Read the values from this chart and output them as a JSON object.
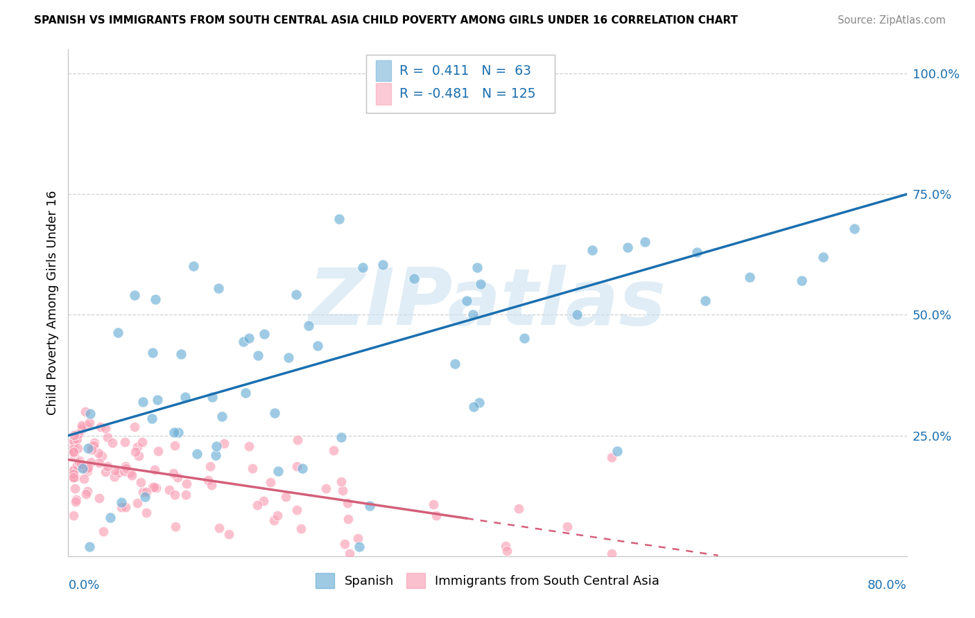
{
  "title": "SPANISH VS IMMIGRANTS FROM SOUTH CENTRAL ASIA CHILD POVERTY AMONG GIRLS UNDER 16 CORRELATION CHART",
  "source": "Source: ZipAtlas.com",
  "ylabel": "Child Poverty Among Girls Under 16",
  "xmin": 0.0,
  "xmax": 0.8,
  "ymin": 0.0,
  "ymax": 1.05,
  "blue_color": "#6baed6",
  "pink_color": "#fa9fb5",
  "blue_line_color": "#1a6faf",
  "pink_line_color": "#d45f7a",
  "watermark_text": "ZIPatlas",
  "blue_intercept": 0.25,
  "blue_slope": 0.625,
  "pink_intercept": 0.2,
  "pink_slope": -0.32,
  "pink_line_solid_end": 0.38,
  "pink_line_dash_end": 0.62
}
